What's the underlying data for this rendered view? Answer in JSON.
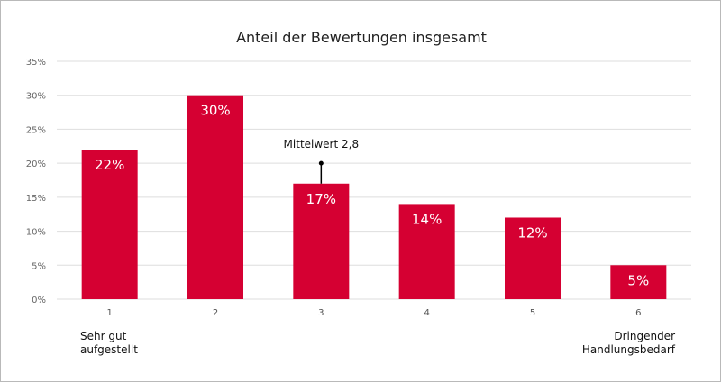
{
  "chart_data": {
    "type": "bar",
    "title": "Anteil der Bewertungen insgesamt",
    "categories": [
      "1",
      "2",
      "3",
      "4",
      "5",
      "6"
    ],
    "values": [
      22,
      30,
      17,
      14,
      12,
      5
    ],
    "data_labels": [
      "22%",
      "30%",
      "17%",
      "14%",
      "12%",
      "5%"
    ],
    "ylim": [
      0,
      35
    ],
    "yticks": [
      0,
      5,
      10,
      15,
      20,
      25,
      30,
      35
    ],
    "ytick_labels": [
      "0%",
      "5%",
      "10%",
      "15%",
      "20%",
      "25%",
      "30%",
      "35%"
    ],
    "grid": true,
    "bar_color": "#d50032",
    "annotation": {
      "text": "Mittelwert 2,8",
      "category": "3",
      "y": 20
    },
    "left_label": [
      "Sehr gut",
      "aufgestellt"
    ],
    "right_label": [
      "Dringender",
      "Handlungsbedarf"
    ]
  }
}
